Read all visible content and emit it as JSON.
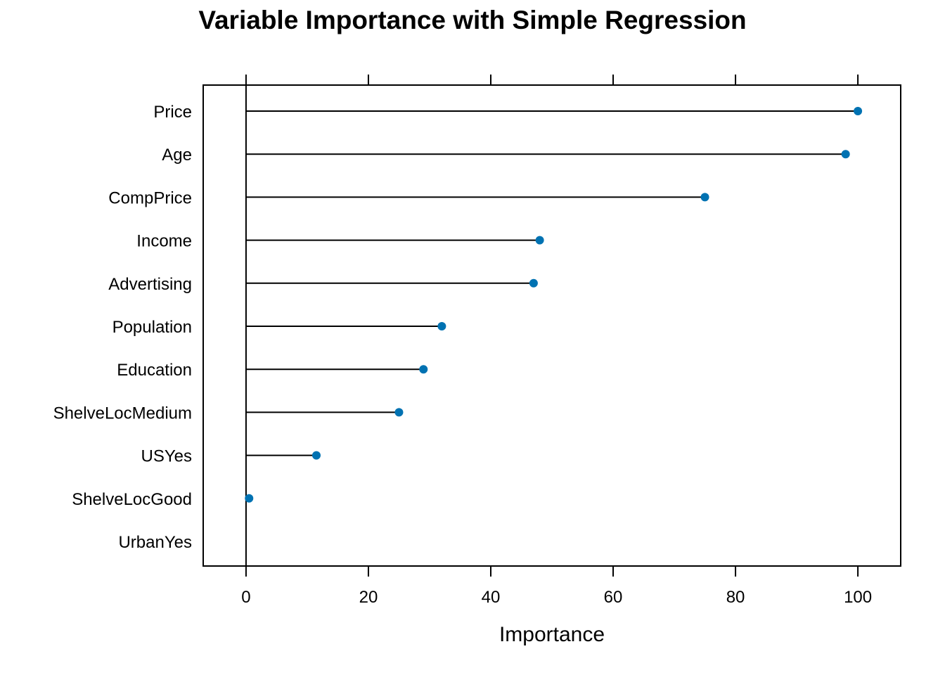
{
  "chart_data": {
    "type": "dot",
    "title": "Variable Importance with Simple Regression",
    "xlabel": "Importance",
    "ylabel": "",
    "xlim": [
      -7,
      107
    ],
    "xticks": [
      0,
      20,
      40,
      60,
      80,
      100
    ],
    "grid": false,
    "categories": [
      "Price",
      "Age",
      "CompPrice",
      "Income",
      "Advertising",
      "Population",
      "Education",
      "ShelveLocMedium",
      "USYes",
      "ShelveLocGood",
      "UrbanYes"
    ],
    "values": [
      100,
      98,
      75,
      48,
      47,
      32,
      29,
      25,
      11.5,
      0.5,
      0
    ],
    "point_color": "#0072B2"
  }
}
